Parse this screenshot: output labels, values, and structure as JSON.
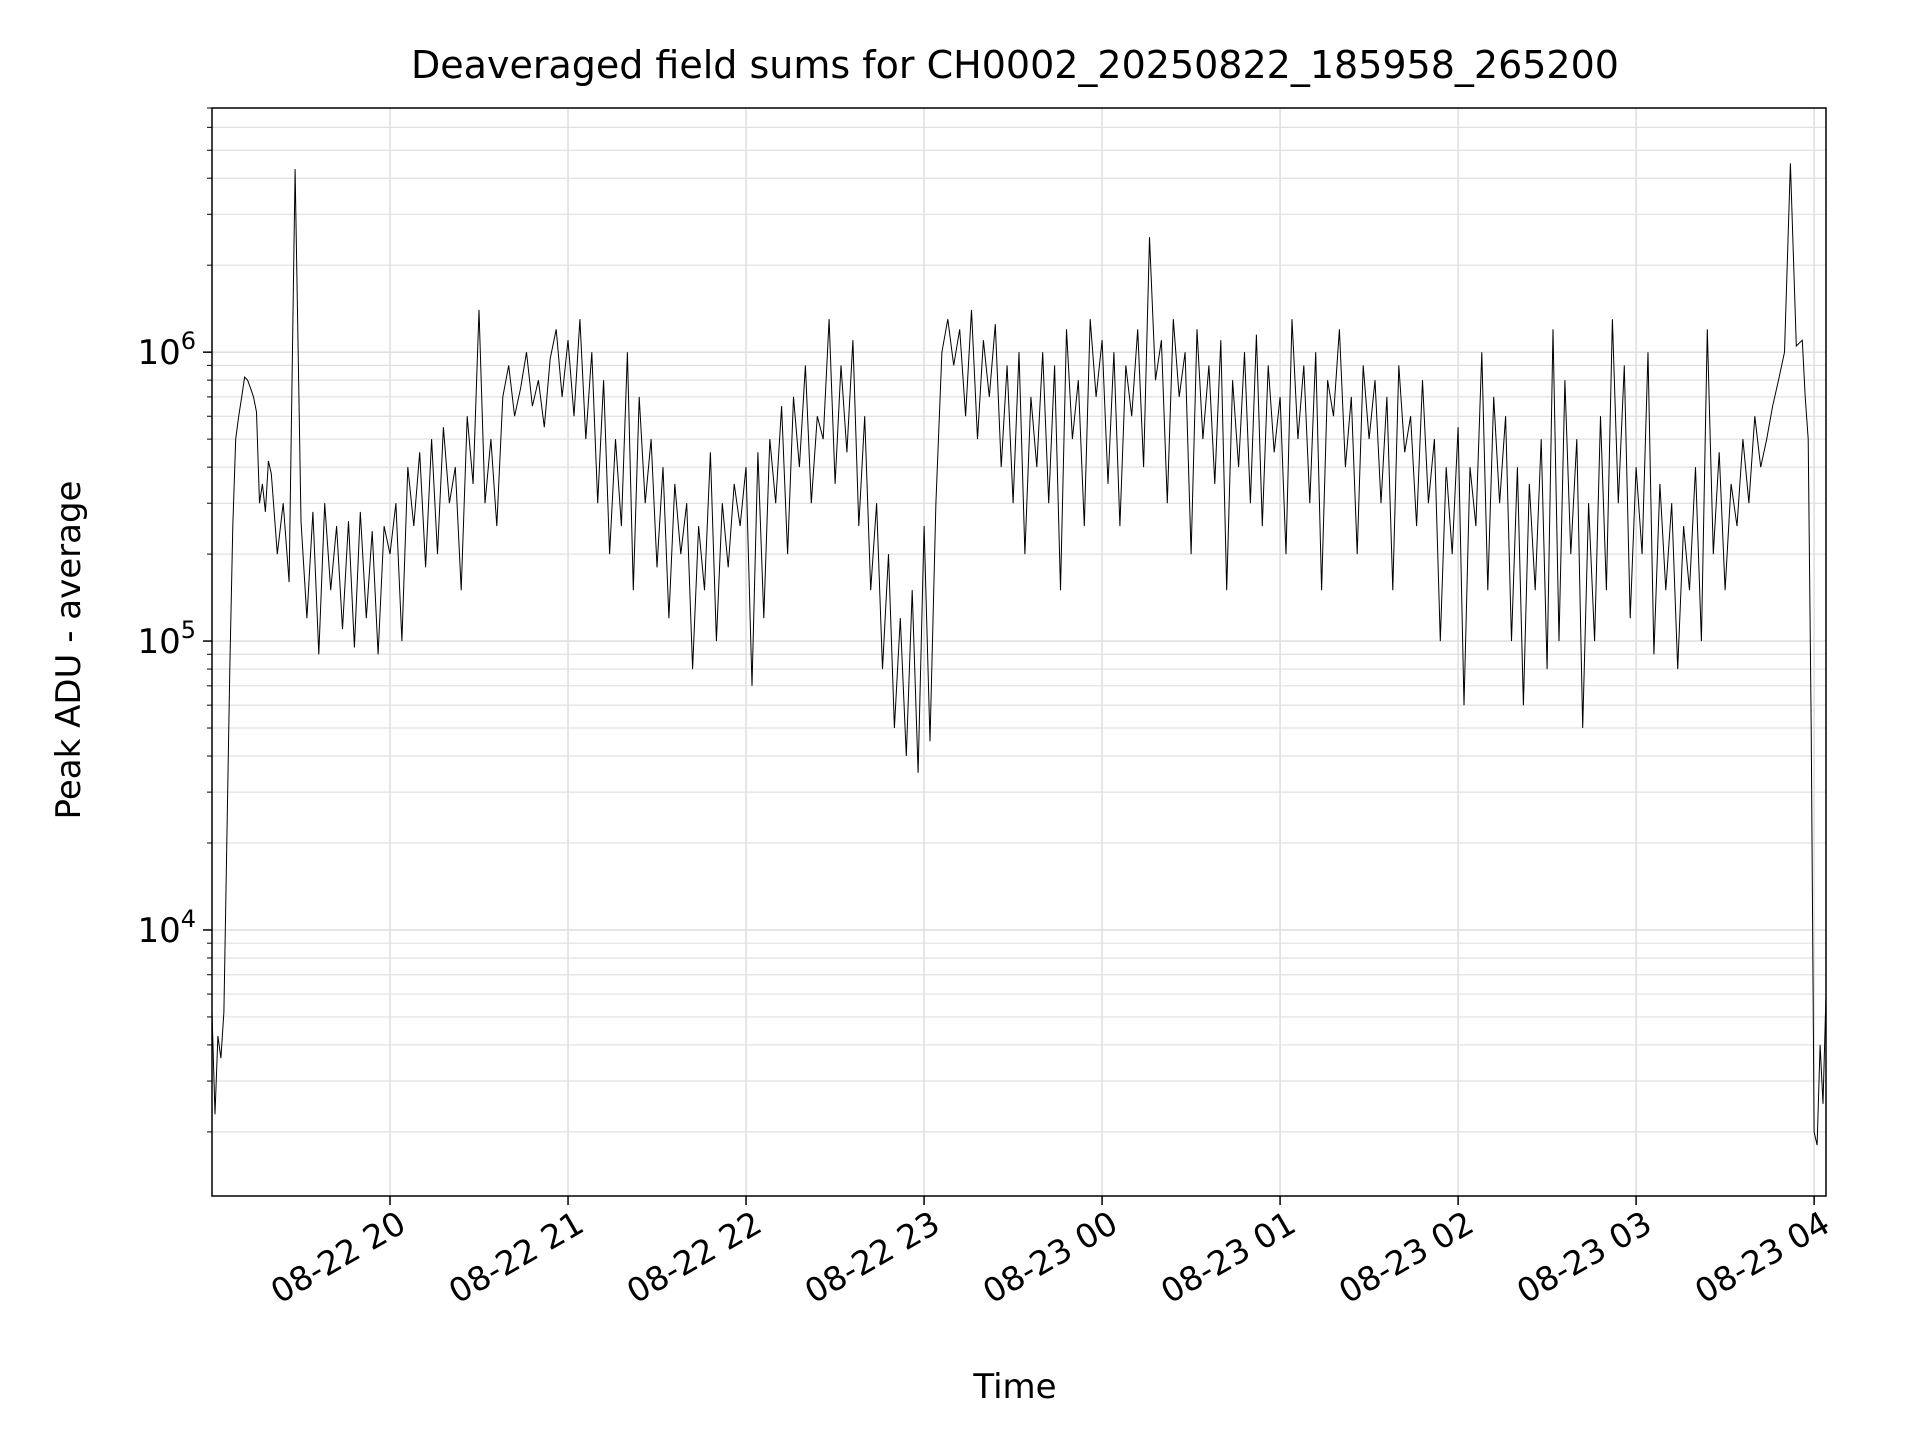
{
  "chart_data": {
    "type": "line",
    "title": "Deaveraged field sums for CH0002_20250822_185958_265200",
    "xlabel": "Time",
    "ylabel": "Peak ADU - average",
    "y_scale": "log",
    "ylim": [
      1200,
      7000000
    ],
    "x_range": [
      "2025-08-22 19:00",
      "2025-08-23 04:04"
    ],
    "grid": "major and minor, light gray",
    "legend": "none",
    "line_color": "#000000",
    "grid_color": "#e0e0e0",
    "x_ticks": [
      {
        "time": "2025-08-22 20:00",
        "label": "08-22 20"
      },
      {
        "time": "2025-08-22 21:00",
        "label": "08-22 21"
      },
      {
        "time": "2025-08-22 22:00",
        "label": "08-22 22"
      },
      {
        "time": "2025-08-22 23:00",
        "label": "08-22 23"
      },
      {
        "time": "2025-08-23 00:00",
        "label": "08-23 00"
      },
      {
        "time": "2025-08-23 01:00",
        "label": "08-23 01"
      },
      {
        "time": "2025-08-23 02:00",
        "label": "08-23 02"
      },
      {
        "time": "2025-08-23 03:00",
        "label": "08-23 03"
      },
      {
        "time": "2025-08-23 04:00",
        "label": "08-23 04"
      }
    ],
    "y_ticks": [
      {
        "value": 10000,
        "base": "10",
        "exp": "4"
      },
      {
        "value": 100000,
        "base": "10",
        "exp": "5"
      },
      {
        "value": 1000000,
        "base": "10",
        "exp": "6"
      }
    ],
    "series": [
      {
        "x": [
          "2025-08-22 19:00",
          "2025-08-22 19:01",
          "2025-08-22 19:02",
          "2025-08-22 19:03",
          "2025-08-22 19:04",
          "2025-08-22 19:05",
          "2025-08-22 19:06",
          "2025-08-22 19:07",
          "2025-08-22 19:08",
          "2025-08-22 19:09",
          "2025-08-22 19:10",
          "2025-08-22 19:11",
          "2025-08-22 19:12",
          "2025-08-22 19:13",
          "2025-08-22 19:14",
          "2025-08-22 19:15",
          "2025-08-22 19:16",
          "2025-08-22 19:17",
          "2025-08-22 19:18",
          "2025-08-22 19:19",
          "2025-08-22 19:20",
          "2025-08-22 19:22",
          "2025-08-22 19:24",
          "2025-08-22 19:26",
          "2025-08-22 19:28",
          "2025-08-22 19:30",
          "2025-08-22 19:32",
          "2025-08-22 19:34",
          "2025-08-22 19:36",
          "2025-08-22 19:38",
          "2025-08-22 19:40",
          "2025-08-22 19:42",
          "2025-08-22 19:44",
          "2025-08-22 19:46",
          "2025-08-22 19:48",
          "2025-08-22 19:50",
          "2025-08-22 19:52",
          "2025-08-22 19:54",
          "2025-08-22 19:56",
          "2025-08-22 19:58",
          "2025-08-22 20:00",
          "2025-08-22 20:02",
          "2025-08-22 20:04",
          "2025-08-22 20:06",
          "2025-08-22 20:08",
          "2025-08-22 20:10",
          "2025-08-22 20:12",
          "2025-08-22 20:14",
          "2025-08-22 20:16",
          "2025-08-22 20:18",
          "2025-08-22 20:20",
          "2025-08-22 20:22",
          "2025-08-22 20:24",
          "2025-08-22 20:26",
          "2025-08-22 20:28",
          "2025-08-22 20:30",
          "2025-08-22 20:32",
          "2025-08-22 20:34",
          "2025-08-22 20:36",
          "2025-08-22 20:38",
          "2025-08-22 20:40",
          "2025-08-22 20:42",
          "2025-08-22 20:44",
          "2025-08-22 20:46",
          "2025-08-22 20:48",
          "2025-08-22 20:50",
          "2025-08-22 20:52",
          "2025-08-22 20:54",
          "2025-08-22 20:56",
          "2025-08-22 20:58",
          "2025-08-22 21:00",
          "2025-08-22 21:02",
          "2025-08-22 21:04",
          "2025-08-22 21:06",
          "2025-08-22 21:08",
          "2025-08-22 21:10",
          "2025-08-22 21:12",
          "2025-08-22 21:14",
          "2025-08-22 21:16",
          "2025-08-22 21:18",
          "2025-08-22 21:20",
          "2025-08-22 21:22",
          "2025-08-22 21:24",
          "2025-08-22 21:26",
          "2025-08-22 21:28",
          "2025-08-22 21:30",
          "2025-08-22 21:32",
          "2025-08-22 21:34",
          "2025-08-22 21:36",
          "2025-08-22 21:38",
          "2025-08-22 21:40",
          "2025-08-22 21:42",
          "2025-08-22 21:44",
          "2025-08-22 21:46",
          "2025-08-22 21:48",
          "2025-08-22 21:50",
          "2025-08-22 21:52",
          "2025-08-22 21:54",
          "2025-08-22 21:56",
          "2025-08-22 21:58",
          "2025-08-22 22:00",
          "2025-08-22 22:02",
          "2025-08-22 22:04",
          "2025-08-22 22:06",
          "2025-08-22 22:08",
          "2025-08-22 22:10",
          "2025-08-22 22:12",
          "2025-08-22 22:14",
          "2025-08-22 22:16",
          "2025-08-22 22:18",
          "2025-08-22 22:20",
          "2025-08-22 22:22",
          "2025-08-22 22:24",
          "2025-08-22 22:26",
          "2025-08-22 22:28",
          "2025-08-22 22:30",
          "2025-08-22 22:32",
          "2025-08-22 22:34",
          "2025-08-22 22:36",
          "2025-08-22 22:38",
          "2025-08-22 22:40",
          "2025-08-22 22:42",
          "2025-08-22 22:44",
          "2025-08-22 22:46",
          "2025-08-22 22:48",
          "2025-08-22 22:50",
          "2025-08-22 22:52",
          "2025-08-22 22:54",
          "2025-08-22 22:56",
          "2025-08-22 22:58",
          "2025-08-22 23:00",
          "2025-08-22 23:02",
          "2025-08-22 23:04",
          "2025-08-22 23:06",
          "2025-08-22 23:08",
          "2025-08-22 23:10",
          "2025-08-22 23:12",
          "2025-08-22 23:14",
          "2025-08-22 23:16",
          "2025-08-22 23:18",
          "2025-08-22 23:20",
          "2025-08-22 23:22",
          "2025-08-22 23:24",
          "2025-08-22 23:26",
          "2025-08-22 23:28",
          "2025-08-22 23:30",
          "2025-08-22 23:32",
          "2025-08-22 23:34",
          "2025-08-22 23:36",
          "2025-08-22 23:38",
          "2025-08-22 23:40",
          "2025-08-22 23:42",
          "2025-08-22 23:44",
          "2025-08-22 23:46",
          "2025-08-22 23:48",
          "2025-08-22 23:50",
          "2025-08-22 23:52",
          "2025-08-22 23:54",
          "2025-08-22 23:56",
          "2025-08-22 23:58",
          "2025-08-23 00:00",
          "2025-08-23 00:02",
          "2025-08-23 00:04",
          "2025-08-23 00:06",
          "2025-08-23 00:08",
          "2025-08-23 00:10",
          "2025-08-23 00:12",
          "2025-08-23 00:14",
          "2025-08-23 00:16",
          "2025-08-23 00:18",
          "2025-08-23 00:20",
          "2025-08-23 00:22",
          "2025-08-23 00:24",
          "2025-08-23 00:26",
          "2025-08-23 00:28",
          "2025-08-23 00:30",
          "2025-08-23 00:32",
          "2025-08-23 00:34",
          "2025-08-23 00:36",
          "2025-08-23 00:38",
          "2025-08-23 00:40",
          "2025-08-23 00:42",
          "2025-08-23 00:44",
          "2025-08-23 00:46",
          "2025-08-23 00:48",
          "2025-08-23 00:50",
          "2025-08-23 00:52",
          "2025-08-23 00:54",
          "2025-08-23 00:56",
          "2025-08-23 00:58",
          "2025-08-23 01:00",
          "2025-08-23 01:02",
          "2025-08-23 01:04",
          "2025-08-23 01:06",
          "2025-08-23 01:08",
          "2025-08-23 01:10",
          "2025-08-23 01:12",
          "2025-08-23 01:14",
          "2025-08-23 01:16",
          "2025-08-23 01:18",
          "2025-08-23 01:20",
          "2025-08-23 01:22",
          "2025-08-23 01:24",
          "2025-08-23 01:26",
          "2025-08-23 01:28",
          "2025-08-23 01:30",
          "2025-08-23 01:32",
          "2025-08-23 01:34",
          "2025-08-23 01:36",
          "2025-08-23 01:38",
          "2025-08-23 01:40",
          "2025-08-23 01:42",
          "2025-08-23 01:44",
          "2025-08-23 01:46",
          "2025-08-23 01:48",
          "2025-08-23 01:50",
          "2025-08-23 01:52",
          "2025-08-23 01:54",
          "2025-08-23 01:56",
          "2025-08-23 01:58",
          "2025-08-23 02:00",
          "2025-08-23 02:02",
          "2025-08-23 02:04",
          "2025-08-23 02:06",
          "2025-08-23 02:08",
          "2025-08-23 02:10",
          "2025-08-23 02:12",
          "2025-08-23 02:14",
          "2025-08-23 02:16",
          "2025-08-23 02:18",
          "2025-08-23 02:20",
          "2025-08-23 02:22",
          "2025-08-23 02:24",
          "2025-08-23 02:26",
          "2025-08-23 02:28",
          "2025-08-23 02:30",
          "2025-08-23 02:32",
          "2025-08-23 02:34",
          "2025-08-23 02:36",
          "2025-08-23 02:38",
          "2025-08-23 02:40",
          "2025-08-23 02:42",
          "2025-08-23 02:44",
          "2025-08-23 02:46",
          "2025-08-23 02:48",
          "2025-08-23 02:50",
          "2025-08-23 02:52",
          "2025-08-23 02:54",
          "2025-08-23 02:56",
          "2025-08-23 02:58",
          "2025-08-23 03:00",
          "2025-08-23 03:02",
          "2025-08-23 03:04",
          "2025-08-23 03:06",
          "2025-08-23 03:08",
          "2025-08-23 03:10",
          "2025-08-23 03:12",
          "2025-08-23 03:14",
          "2025-08-23 03:16",
          "2025-08-23 03:18",
          "2025-08-23 03:20",
          "2025-08-23 03:22",
          "2025-08-23 03:24",
          "2025-08-23 03:26",
          "2025-08-23 03:28",
          "2025-08-23 03:30",
          "2025-08-23 03:32",
          "2025-08-23 03:34",
          "2025-08-23 03:36",
          "2025-08-23 03:38",
          "2025-08-23 03:40",
          "2025-08-23 03:42",
          "2025-08-23 03:44",
          "2025-08-23 03:46",
          "2025-08-23 03:48",
          "2025-08-23 03:50",
          "2025-08-23 03:52",
          "2025-08-23 03:54",
          "2025-08-23 03:56",
          "2025-08-23 03:57",
          "2025-08-23 03:58",
          "2025-08-23 03:59",
          "2025-08-23 04:00",
          "2025-08-23 04:01",
          "2025-08-23 04:02",
          "2025-08-23 04:03",
          "2025-08-23 04:04"
        ],
        "y": [
          5200,
          2300,
          4300,
          3600,
          5200,
          20000,
          80000,
          250000,
          500000,
          600000,
          700000,
          820000,
          800000,
          750000,
          700000,
          620000,
          300000,
          350000,
          280000,
          420000,
          380000,
          200000,
          300000,
          160000,
          4300000,
          260000,
          120000,
          280000,
          90000,
          300000,
          150000,
          250000,
          110000,
          260000,
          95000,
          280000,
          120000,
          240000,
          90000,
          250000,
          200000,
          300000,
          100000,
          400000,
          250000,
          450000,
          180000,
          500000,
          200000,
          550000,
          300000,
          400000,
          150000,
          600000,
          350000,
          1400000,
          300000,
          500000,
          250000,
          700000,
          900000,
          600000,
          750000,
          1000000,
          650000,
          800000,
          550000,
          950000,
          1200000,
          700000,
          1100000,
          600000,
          1300000,
          500000,
          1000000,
          300000,
          800000,
          200000,
          500000,
          250000,
          1000000,
          150000,
          700000,
          300000,
          500000,
          180000,
          400000,
          120000,
          350000,
          200000,
          300000,
          80000,
          250000,
          150000,
          450000,
          100000,
          300000,
          180000,
          350000,
          250000,
          400000,
          70000,
          450000,
          120000,
          500000,
          300000,
          650000,
          200000,
          700000,
          400000,
          900000,
          300000,
          600000,
          500000,
          1300000,
          350000,
          900000,
          450000,
          1100000,
          250000,
          600000,
          150000,
          300000,
          80000,
          200000,
          50000,
          120000,
          40000,
          150000,
          35000,
          250000,
          45000,
          300000,
          1000000,
          1300000,
          900000,
          1200000,
          600000,
          1400000,
          500000,
          1100000,
          700000,
          1250000,
          400000,
          900000,
          300000,
          1000000,
          200000,
          700000,
          400000,
          1000000,
          300000,
          900000,
          150000,
          1200000,
          500000,
          800000,
          250000,
          1300000,
          700000,
          1100000,
          350000,
          1000000,
          250000,
          900000,
          600000,
          1200000,
          400000,
          2500000,
          800000,
          1100000,
          300000,
          1300000,
          700000,
          1000000,
          200000,
          1200000,
          500000,
          900000,
          350000,
          1100000,
          150000,
          800000,
          400000,
          1000000,
          300000,
          1150000,
          250000,
          900000,
          450000,
          700000,
          200000,
          1300000,
          500000,
          900000,
          300000,
          1000000,
          150000,
          800000,
          600000,
          1200000,
          400000,
          700000,
          200000,
          900000,
          500000,
          800000,
          300000,
          700000,
          150000,
          900000,
          450000,
          600000,
          250000,
          800000,
          300000,
          500000,
          100000,
          400000,
          200000,
          550000,
          60000,
          400000,
          250000,
          1000000,
          150000,
          700000,
          300000,
          600000,
          100000,
          400000,
          60000,
          350000,
          150000,
          500000,
          80000,
          1200000,
          100000,
          800000,
          200000,
          500000,
          50000,
          300000,
          100000,
          600000,
          150000,
          1300000,
          300000,
          900000,
          120000,
          400000,
          200000,
          1000000,
          90000,
          350000,
          150000,
          300000,
          80000,
          250000,
          150000,
          400000,
          100000,
          1200000,
          200000,
          450000,
          150000,
          350000,
          250000,
          500000,
          300000,
          600000,
          400000,
          500000,
          650000,
          800000,
          1000000,
          4500000,
          1050000,
          1100000,
          700000,
          500000,
          50000,
          2000,
          1800,
          4000,
          2500,
          6000
        ]
      }
    ]
  }
}
